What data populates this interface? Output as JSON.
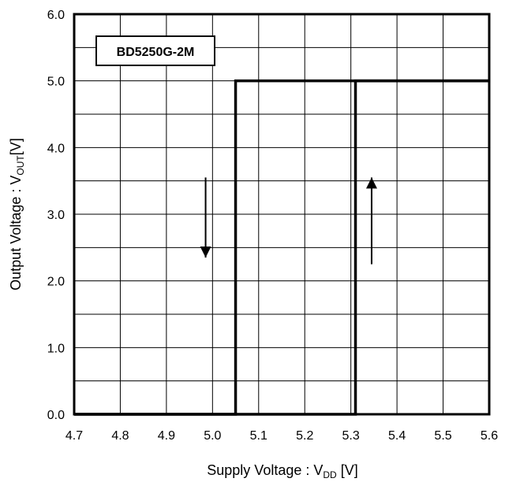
{
  "chart_data": {
    "type": "line",
    "xlabel": {
      "main": "Supply Voltage : V",
      "sub": "DD",
      "unit": " [V]"
    },
    "ylabel": {
      "main": "Output Voltage : V",
      "sub": "OUT",
      "unit": "[V]"
    },
    "xlim": [
      4.7,
      5.6
    ],
    "ylim": [
      0.0,
      6.0
    ],
    "x_ticks": [
      "4.7",
      "4.8",
      "4.9",
      "5.0",
      "5.1",
      "5.2",
      "5.3",
      "5.4",
      "5.5",
      "5.6"
    ],
    "y_ticks": [
      "0.0",
      "1.0",
      "2.0",
      "3.0",
      "4.0",
      "5.0",
      "6.0"
    ],
    "grid": true,
    "legend_label": "BD5250G-2M",
    "series": [
      {
        "x": [
          4.7,
          5.05,
          5.05,
          5.6
        ],
        "y": [
          0.0,
          0.0,
          5.0,
          5.0
        ]
      },
      {
        "x": [
          4.7,
          5.31,
          5.31,
          5.6
        ],
        "y": [
          0.0,
          0.0,
          5.0,
          5.0
        ]
      }
    ],
    "arrows": [
      {
        "direction": "down",
        "x": 4.985,
        "y_from": 3.55,
        "y_to": 2.35
      },
      {
        "direction": "up",
        "x": 5.345,
        "y_from": 2.25,
        "y_to": 3.55
      }
    ]
  }
}
